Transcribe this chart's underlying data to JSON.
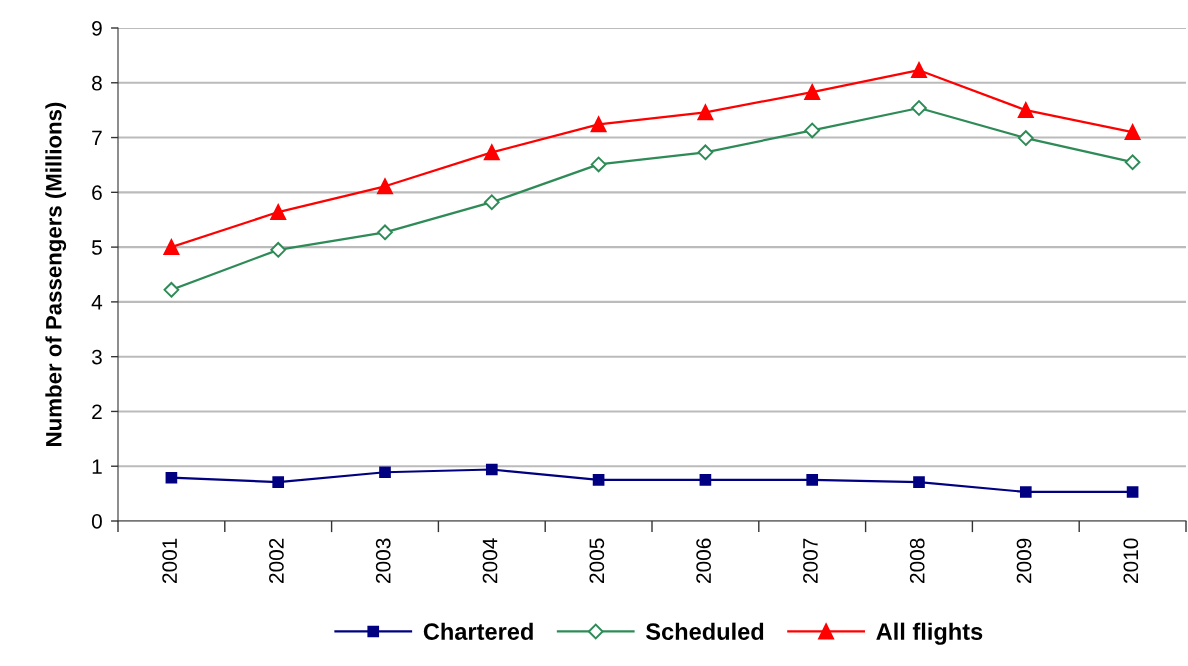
{
  "chart_data": {
    "type": "line",
    "ylabel": "Number of Passengers (Millions)",
    "categories": [
      "2001",
      "2002",
      "2003",
      "2004",
      "2005",
      "2006",
      "2007",
      "2008",
      "2009",
      "2010"
    ],
    "series": [
      {
        "name": "Chartered",
        "color": "#000080",
        "marker": "square",
        "values": [
          0.79,
          0.71,
          0.89,
          0.94,
          0.75,
          0.75,
          0.75,
          0.71,
          0.53,
          0.53
        ]
      },
      {
        "name": "Scheduled",
        "color": "#2e8b57",
        "marker": "diamond",
        "values": [
          4.22,
          4.95,
          5.27,
          5.82,
          6.51,
          6.73,
          7.13,
          7.54,
          6.99,
          6.55
        ]
      },
      {
        "name": "All flights",
        "color": "#ff0000",
        "marker": "triangle",
        "values": [
          5.0,
          5.64,
          6.11,
          6.73,
          7.24,
          7.46,
          7.83,
          8.23,
          7.5,
          7.1
        ]
      }
    ],
    "ylim": [
      0,
      9
    ],
    "yticks": [
      0,
      1,
      2,
      3,
      4,
      5,
      6,
      7,
      8,
      9
    ],
    "grid": "y",
    "legend": "bottom",
    "line_style": "solid"
  }
}
